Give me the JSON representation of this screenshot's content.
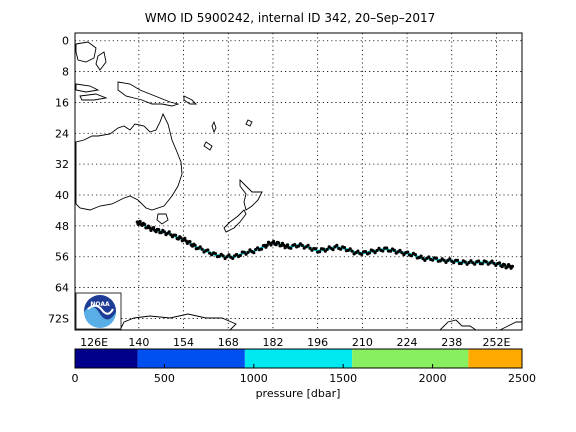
{
  "title": "WMO ID 5900242, internal ID 342, 20–Sep–2017",
  "map": {
    "lon_labels": [
      "126E",
      "140",
      "154",
      "168",
      "182",
      "196",
      "210",
      "224",
      "238",
      "252E"
    ],
    "lon_values": [
      126,
      140,
      154,
      168,
      182,
      196,
      210,
      224,
      238,
      252
    ],
    "lat_labels": [
      "0",
      "8",
      "16",
      "24",
      "32",
      "40",
      "48",
      "56",
      "64",
      "72S"
    ],
    "lat_values": [
      0,
      8,
      16,
      24,
      32,
      40,
      48,
      56,
      64,
      72
    ],
    "lon_range": [
      120,
      260
    ],
    "lat_range": [
      -2,
      75
    ],
    "grid": true,
    "logo_icon": "noaa-logo-icon",
    "track_color": "#00e5ee",
    "track_marker_color": "#000000"
  },
  "chart_data": {
    "type": "scatter",
    "title": "WMO ID 5900242, internal ID 342, 20–Sep–2017",
    "track": {
      "lon": [
        139.5,
        141,
        143,
        145,
        147,
        149.5,
        152,
        154,
        156,
        158,
        161,
        164,
        167,
        170,
        173,
        176,
        179,
        181,
        183,
        185,
        187,
        190,
        193,
        196,
        199,
        202,
        205,
        208,
        211,
        214,
        217,
        220,
        223,
        226,
        229,
        232,
        235,
        238,
        241,
        244,
        247,
        250,
        253,
        255,
        257
      ],
      "lat": [
        47,
        47.5,
        48.5,
        49,
        49.5,
        50,
        51,
        51.5,
        52.5,
        53.5,
        54.5,
        55.5,
        56,
        56,
        55,
        54.5,
        53.5,
        52.5,
        52.5,
        53,
        53.5,
        53,
        53.5,
        54.5,
        54,
        53.5,
        54,
        55,
        55,
        54.5,
        54,
        54.5,
        55,
        55.5,
        56.5,
        56.5,
        57,
        57,
        57.5,
        57.5,
        57.5,
        57.5,
        58,
        58.5,
        58.5
      ]
    },
    "colorbar": {
      "label": "pressure [dbar]",
      "ticks": [
        0,
        500,
        1000,
        1500,
        2000,
        2500
      ],
      "tick_labels": [
        "0",
        "500",
        "1000",
        "1500",
        "2000",
        "2500"
      ],
      "range": [
        0,
        2500
      ],
      "bins": [
        {
          "from": 0,
          "to": 350,
          "color": "#00008b"
        },
        {
          "from": 350,
          "to": 950,
          "color": "#0050f0"
        },
        {
          "from": 950,
          "to": 1550,
          "color": "#00e8f0"
        },
        {
          "from": 1550,
          "to": 2200,
          "color": "#88f060"
        },
        {
          "from": 2200,
          "to": 2500,
          "color": "#ffaa00"
        }
      ]
    }
  }
}
